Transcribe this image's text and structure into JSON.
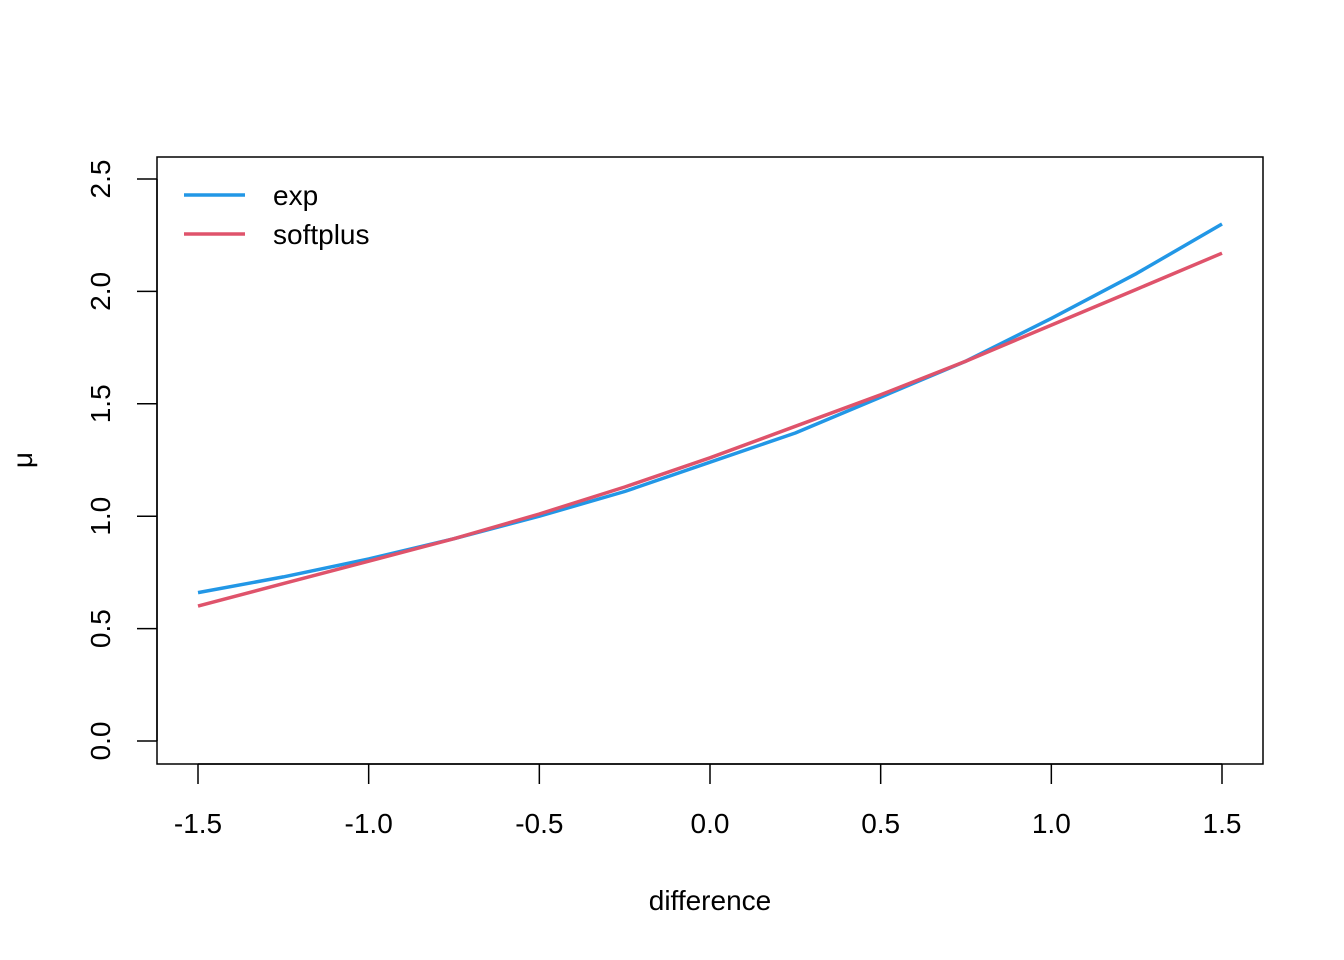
{
  "chart_data": {
    "type": "line",
    "title": "",
    "xlabel": "difference",
    "ylabel": "μ",
    "xlim": [
      -1.5,
      1.5
    ],
    "ylim": [
      0.0,
      2.5
    ],
    "xticks": [
      "-1.5",
      "-1.0",
      "-0.5",
      "0.0",
      "0.5",
      "1.0",
      "1.5"
    ],
    "yticks": [
      "0.0",
      "0.5",
      "1.0",
      "1.5",
      "2.0",
      "2.5"
    ],
    "grid": false,
    "legend_position": "top-left",
    "x": [
      -1.5,
      -1.25,
      -1.0,
      -0.75,
      -0.5,
      -0.25,
      0.0,
      0.25,
      0.5,
      0.75,
      1.0,
      1.25,
      1.5
    ],
    "series": [
      {
        "name": "exp",
        "color": "#2297E6",
        "values": [
          0.66,
          0.73,
          0.81,
          0.9,
          1.0,
          1.11,
          1.24,
          1.37,
          1.53,
          1.69,
          1.88,
          2.08,
          2.3
        ]
      },
      {
        "name": "softplus",
        "color": "#DF536B",
        "values": [
          0.6,
          0.7,
          0.8,
          0.9,
          1.01,
          1.13,
          1.26,
          1.4,
          1.54,
          1.69,
          1.85,
          2.01,
          2.17
        ]
      }
    ]
  }
}
